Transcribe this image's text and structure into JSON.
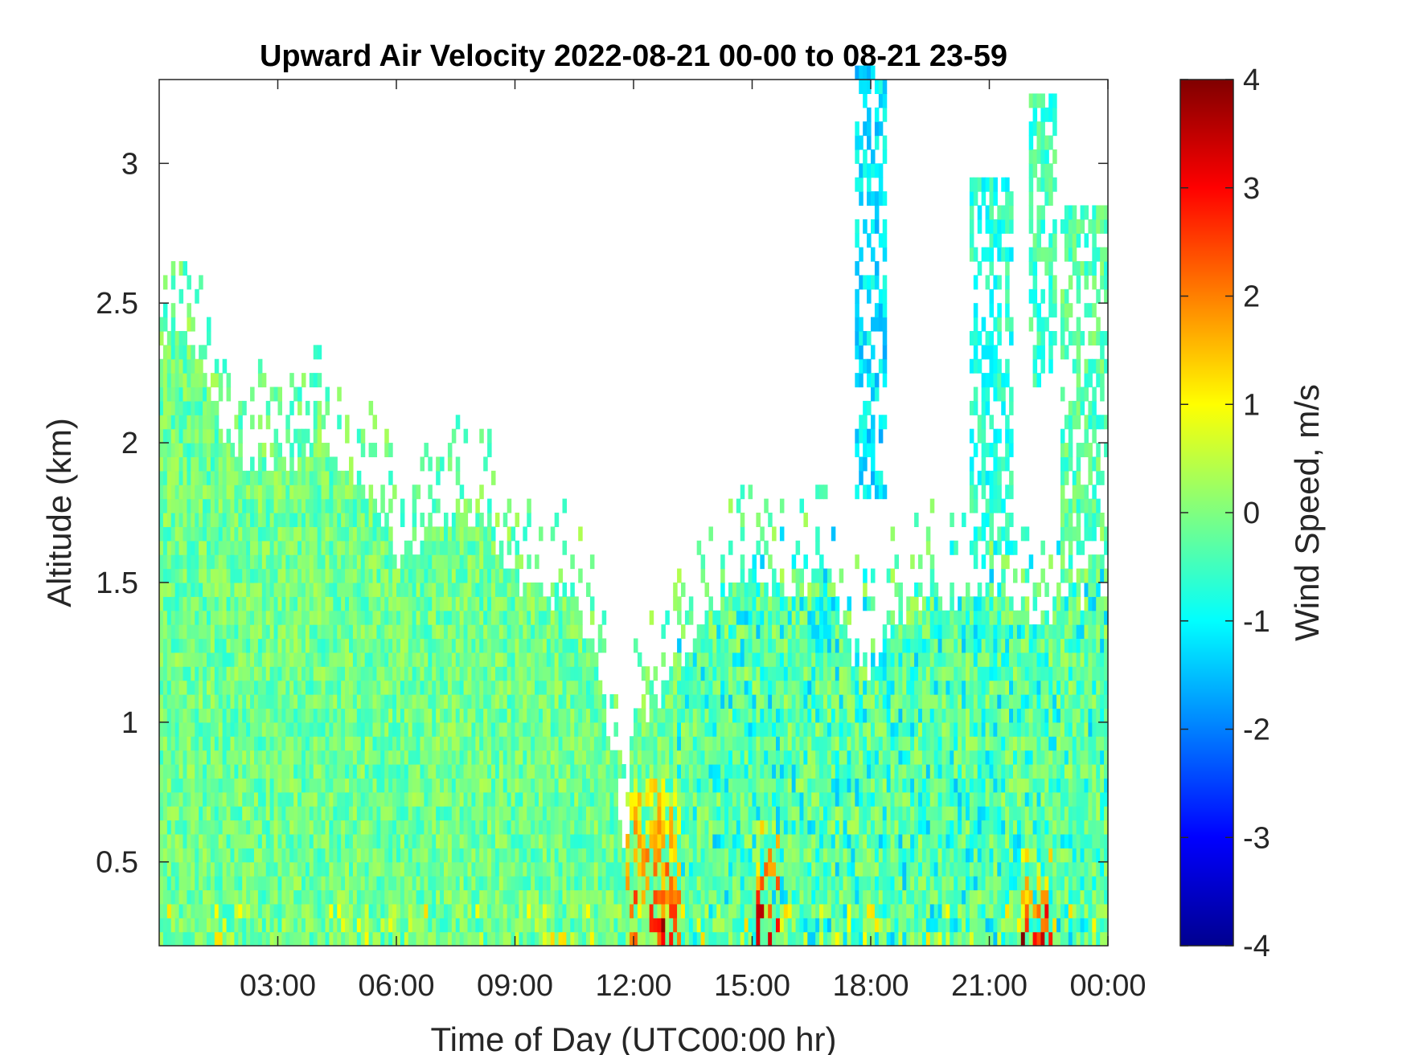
{
  "chart_data": {
    "type": "heatmap",
    "title": "Upward Air Velocity 2022-08-21 00-00 to 08-21 23-59",
    "xlabel": "Time of Day (UTC00:00 hr)",
    "ylabel": "Altitude (km)",
    "colorbar_label": "Wind Speed, m/s",
    "colormap": "jet",
    "xlim_hours": [
      0,
      24
    ],
    "ylim_km": [
      0.2,
      3.3
    ],
    "clim": [
      -4,
      4
    ],
    "x_ticks": [
      {
        "hour": 3,
        "label": "03:00"
      },
      {
        "hour": 6,
        "label": "06:00"
      },
      {
        "hour": 9,
        "label": "09:00"
      },
      {
        "hour": 12,
        "label": "12:00"
      },
      {
        "hour": 15,
        "label": "15:00"
      },
      {
        "hour": 18,
        "label": "18:00"
      },
      {
        "hour": 21,
        "label": "21:00"
      },
      {
        "hour": 24,
        "label": "00:00"
      }
    ],
    "y_ticks": [
      {
        "km": 0.5,
        "label": "0.5"
      },
      {
        "km": 1.0,
        "label": "1"
      },
      {
        "km": 1.5,
        "label": "1.5"
      },
      {
        "km": 2.0,
        "label": "2"
      },
      {
        "km": 2.5,
        "label": "2.5"
      },
      {
        "km": 3.0,
        "label": "3"
      }
    ],
    "colorbar_ticks": [
      {
        "value": 4,
        "label": "4"
      },
      {
        "value": 3,
        "label": "3"
      },
      {
        "value": 2,
        "label": "2"
      },
      {
        "value": 1,
        "label": "1"
      },
      {
        "value": 0,
        "label": "0"
      },
      {
        "value": -1,
        "label": "-1"
      },
      {
        "value": -2,
        "label": "-2"
      },
      {
        "value": -3,
        "label": "-3"
      },
      {
        "value": -4,
        "label": "-4"
      }
    ],
    "data_top_profile": {
      "hours": [
        0,
        0.5,
        1,
        1.5,
        2,
        3,
        4,
        5,
        5.5,
        6,
        7,
        8,
        9,
        10,
        10.5,
        11,
        11.5,
        11.8,
        12,
        12.5,
        13,
        13.5,
        14,
        15,
        16,
        17,
        17.5,
        18,
        19,
        20,
        21,
        22,
        23,
        24
      ],
      "top_km": [
        2.35,
        2.45,
        2.3,
        2.1,
        1.95,
        1.95,
        2.05,
        1.9,
        1.8,
        1.6,
        1.75,
        1.8,
        1.55,
        1.45,
        1.5,
        1.25,
        0.9,
        0.5,
        1.1,
        1.1,
        1.2,
        1.3,
        1.45,
        1.55,
        1.5,
        1.55,
        1.3,
        1.2,
        1.5,
        1.45,
        1.5,
        1.4,
        1.5,
        1.5
      ]
    },
    "upper_features": [
      {
        "hours": [
          17.6,
          18.3
        ],
        "km": [
          1.8,
          3.3
        ],
        "mean_speed": -1.2
      },
      {
        "hours": [
          20.5,
          21.5
        ],
        "km": [
          1.6,
          2.9
        ],
        "mean_speed": -0.7
      },
      {
        "hours": [
          22.0,
          22.6
        ],
        "km": [
          2.2,
          3.2
        ],
        "mean_speed": -0.5
      },
      {
        "hours": [
          22.8,
          24.0
        ],
        "km": [
          1.5,
          2.8
        ],
        "mean_speed": -0.3
      }
    ],
    "surface_updrafts": [
      {
        "hours": [
          11.8,
          13.2
        ],
        "km": [
          0.2,
          0.8
        ],
        "mean_speed": 1.8
      },
      {
        "hours": [
          15.1,
          15.7
        ],
        "km": [
          0.2,
          0.6
        ],
        "mean_speed": 2.2
      },
      {
        "hours": [
          21.8,
          22.5
        ],
        "km": [
          0.2,
          0.5
        ],
        "mean_speed": 2.0
      }
    ]
  }
}
